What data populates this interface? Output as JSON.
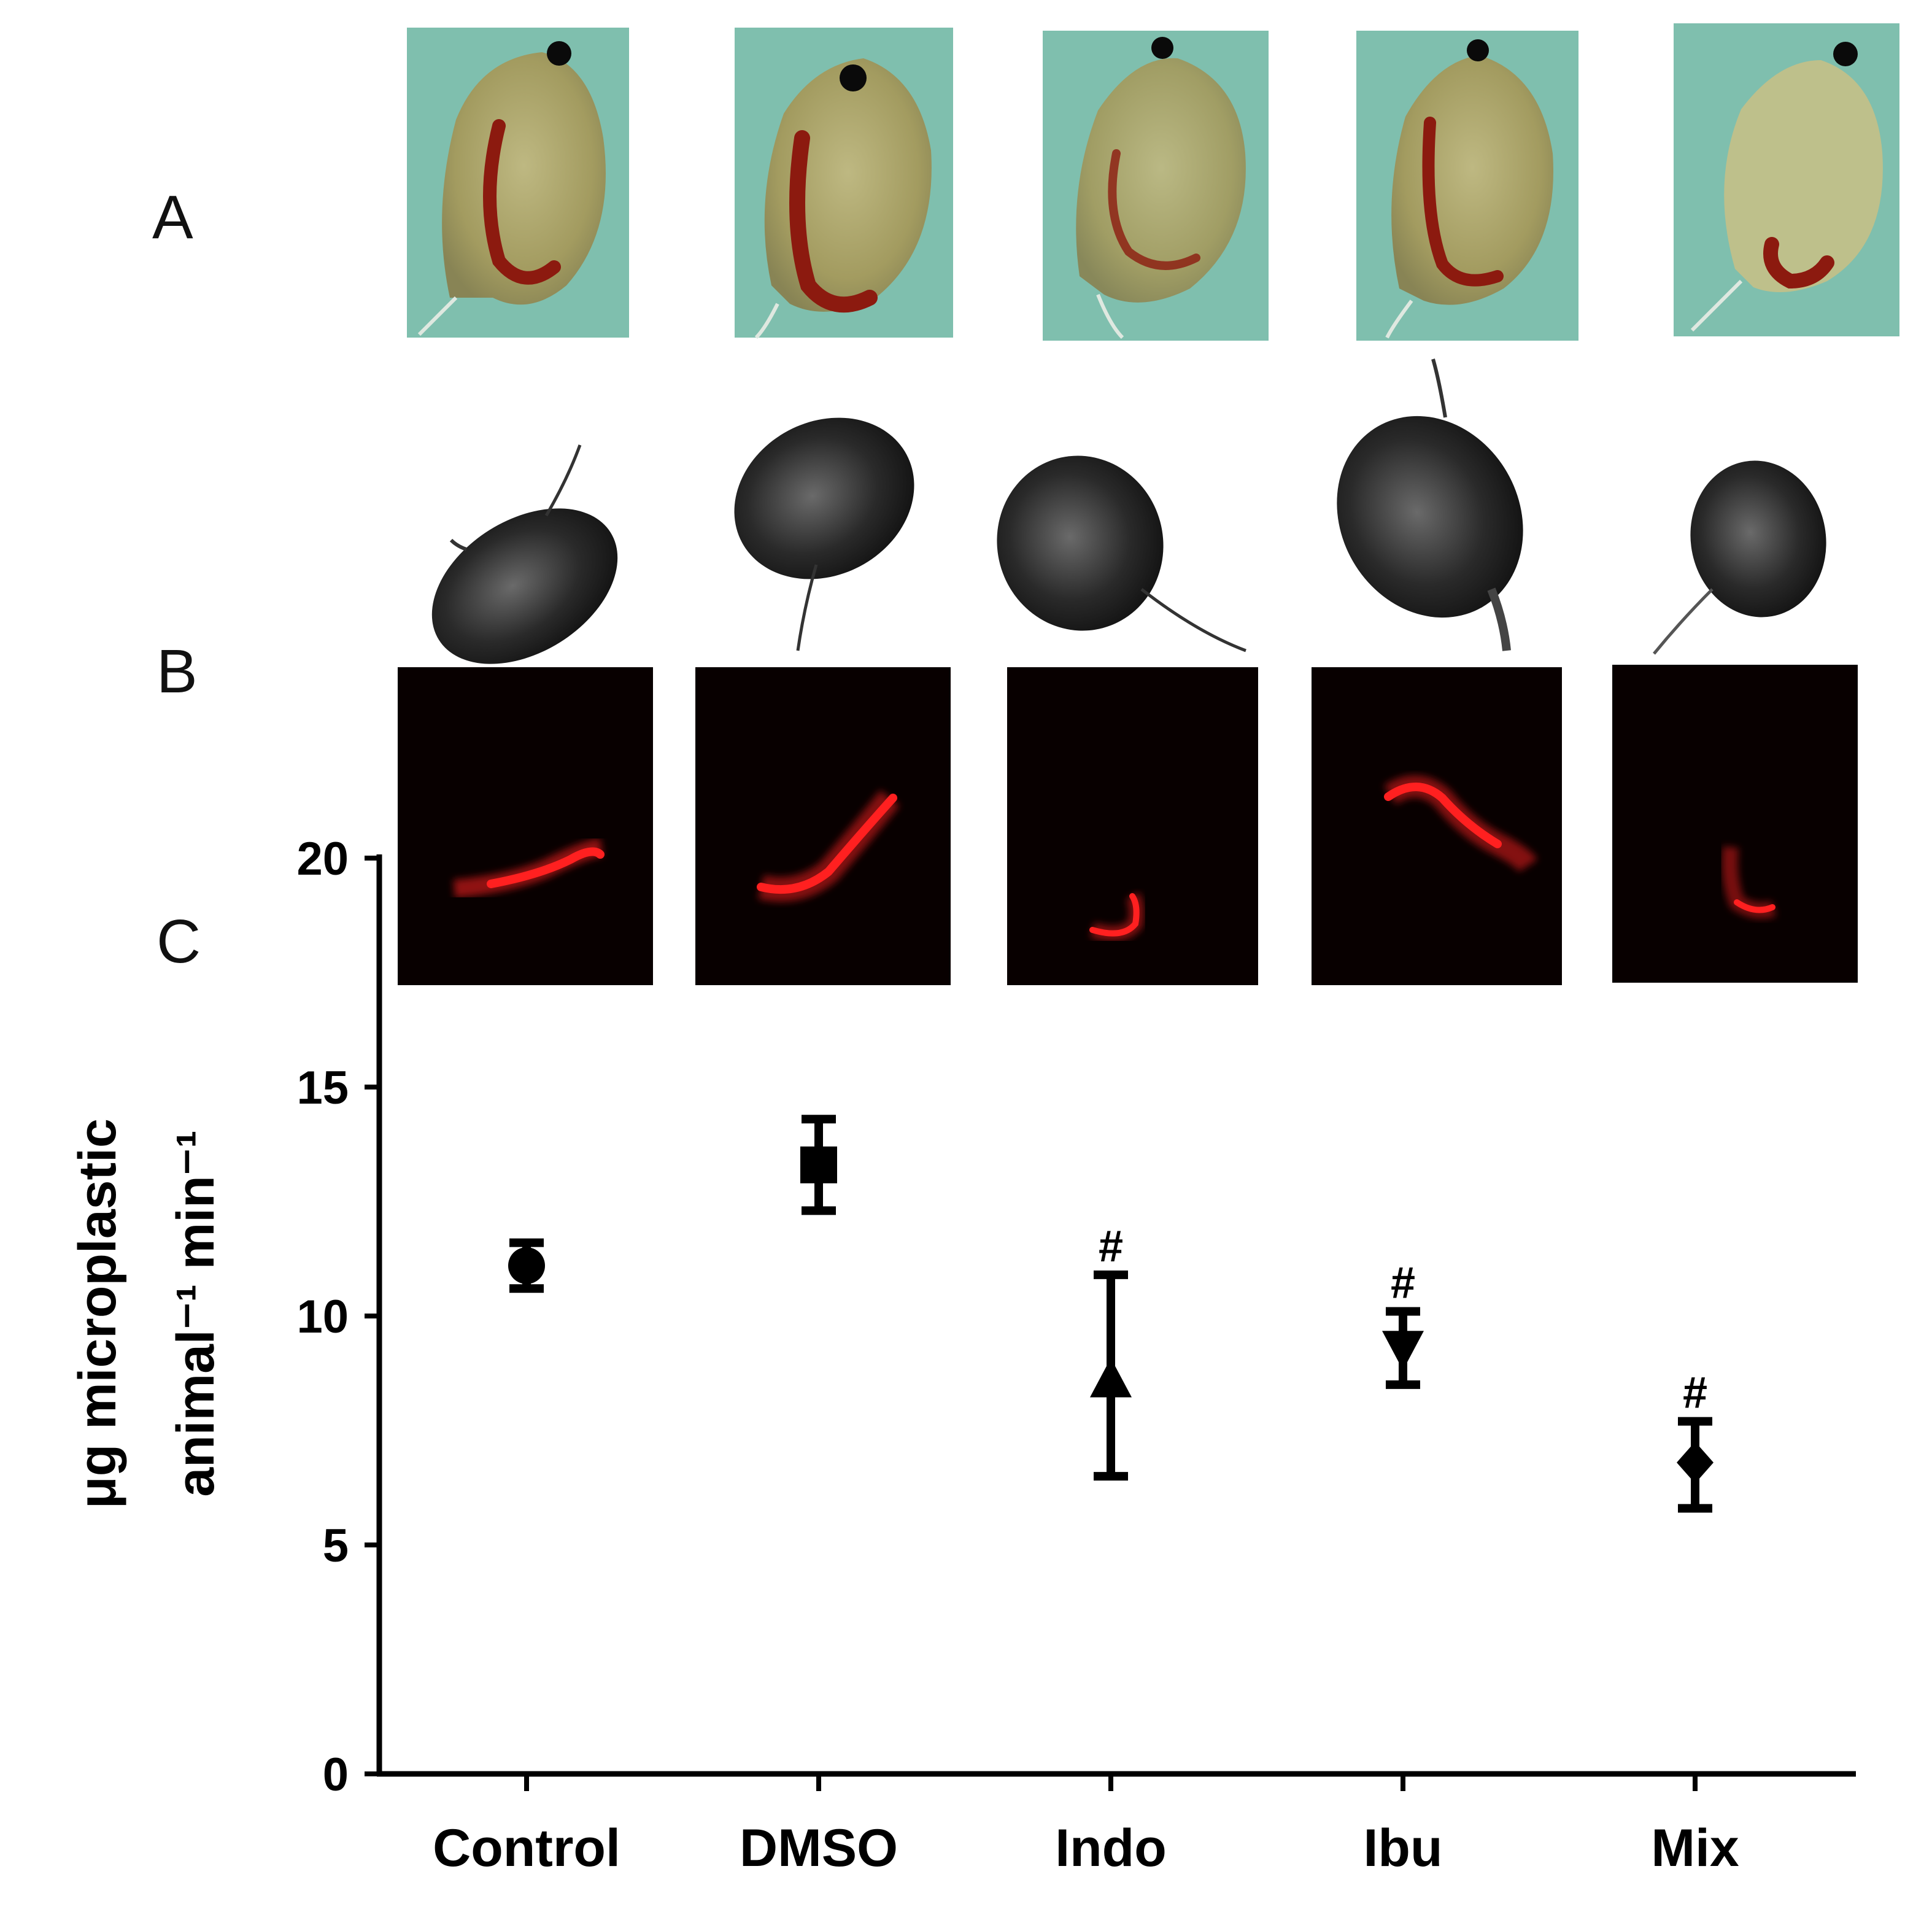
{
  "panels": {
    "a": "A",
    "b": "B",
    "c": "C"
  },
  "colors": {
    "photo_bg": "#7fbfae",
    "gut": "#8c1a0f",
    "fluor_bg": "#080000",
    "fluor_red": "#ff2020",
    "ink": "#000000"
  },
  "chart_data": {
    "type": "scatter",
    "title": "",
    "xlabel": "",
    "ylabel_line1": "μg microplastic",
    "ylabel_line2": "animal⁻¹ min⁻¹",
    "ylim": [
      0,
      20
    ],
    "yticks": [
      0,
      5,
      10,
      15,
      20
    ],
    "categories": [
      "Control",
      "DMSO",
      "Indo",
      "Ibu",
      "Mix"
    ],
    "values": [
      11.1,
      13.3,
      8.6,
      9.3,
      6.8
    ],
    "error_low": [
      10.6,
      12.3,
      6.5,
      8.5,
      5.8
    ],
    "error_high": [
      11.6,
      14.3,
      10.9,
      10.1,
      7.7
    ],
    "markers": [
      "circle",
      "square",
      "triangle-up",
      "triangle-down",
      "diamond"
    ],
    "significance": [
      "",
      "",
      "#",
      "#",
      "#"
    ],
    "grid": false,
    "legend": "none"
  }
}
